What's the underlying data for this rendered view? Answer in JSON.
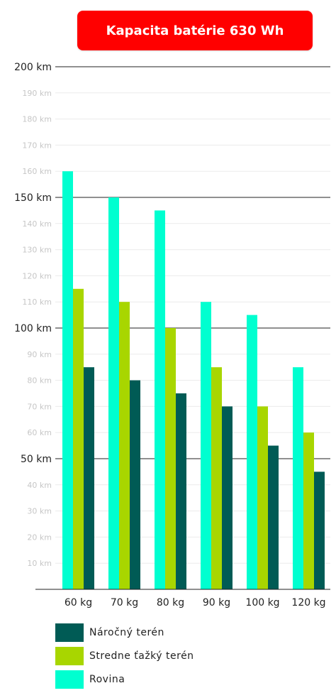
{
  "chart_data": {
    "type": "bar",
    "title": "Kapacita batérie 630 Wh",
    "categories": [
      "60 kg",
      "70 kg",
      "80 kg",
      "90 kg",
      "100 kg",
      "120 kg"
    ],
    "series": [
      {
        "name": "Rovina",
        "color": "#00ffd0",
        "values": [
          160,
          150,
          145,
          110,
          105,
          85
        ]
      },
      {
        "name": "Stredne ťažký terén",
        "color": "#a8d600",
        "values": [
          115,
          110,
          100,
          85,
          70,
          60
        ]
      },
      {
        "name": "Náročný terén",
        "color": "#005b55",
        "values": [
          85,
          80,
          75,
          70,
          55,
          45
        ]
      }
    ],
    "ylim": [
      0,
      200
    ],
    "major_ticks": [
      "50 km",
      "100 km",
      "150 km",
      "200 km"
    ],
    "minor_ticks": [
      "10 km",
      "20 km",
      "30 km",
      "40 km",
      "60 km",
      "70 km",
      "80 km",
      "90 km",
      "110 km",
      "120 km",
      "130 km",
      "140 km",
      "160 km",
      "170 km",
      "180 km",
      "190 km"
    ],
    "grid": true,
    "legend_position": "bottom-left",
    "legend_order": [
      "Náročný terén",
      "Stredne ťažký terén",
      "Rovina"
    ]
  }
}
